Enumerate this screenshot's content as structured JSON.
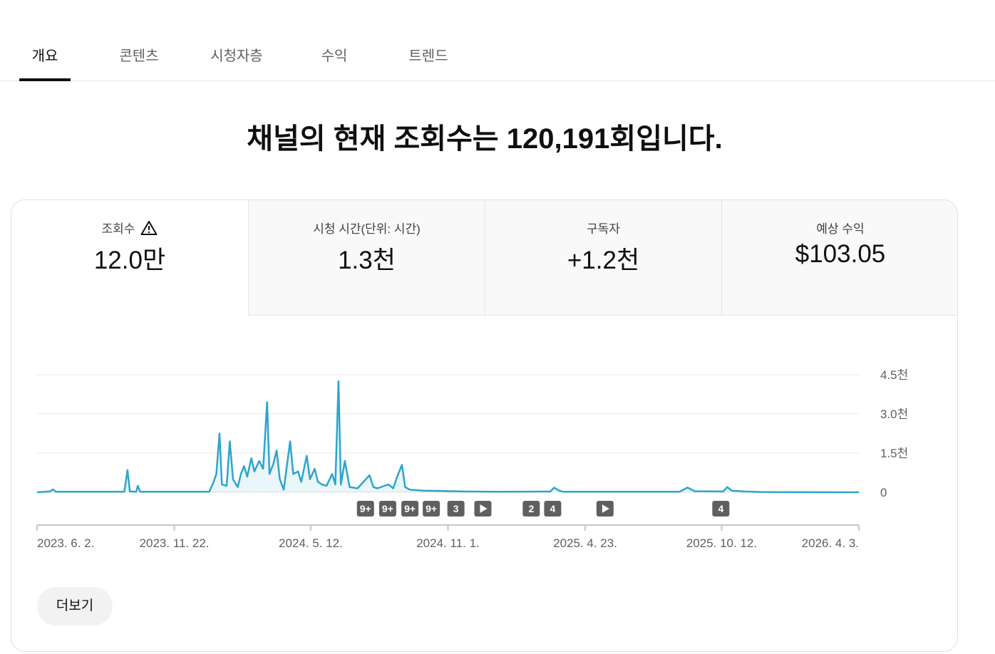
{
  "tabs": [
    "개요",
    "콘텐츠",
    "시청자층",
    "수익",
    "트렌드"
  ],
  "active_tab": 0,
  "headline": "채널의 현재 조회수는 120,191회입니다.",
  "metrics": [
    {
      "label": "조회수",
      "value": "12.0만"
    },
    {
      "label": "시청 시간(단위: 시간)",
      "value": "1.3천"
    },
    {
      "label": "구독자",
      "value": "+1.2천"
    },
    {
      "label": "예상 수익",
      "value": "$103.05"
    }
  ],
  "chart_data": {
    "type": "line",
    "color": "#2ea4cc",
    "grid": true,
    "x": [
      "2023-06-02",
      "2023-06-18",
      "2023-06-22",
      "2023-06-26",
      "2023-09-20",
      "2023-09-24",
      "2023-09-27",
      "2023-10-05",
      "2023-10-07",
      "2023-10-10",
      "2024-01-05",
      "2024-01-10",
      "2024-01-14",
      "2024-01-18",
      "2024-01-21",
      "2024-01-27",
      "2024-01-31",
      "2024-02-04",
      "2024-02-10",
      "2024-02-14",
      "2024-02-18",
      "2024-02-22",
      "2024-02-27",
      "2024-03-02",
      "2024-03-08",
      "2024-03-13",
      "2024-03-18",
      "2024-03-21",
      "2024-03-26",
      "2024-03-30",
      "2024-04-03",
      "2024-04-08",
      "2024-04-16",
      "2024-04-20",
      "2024-04-26",
      "2024-04-30",
      "2024-05-07",
      "2024-05-11",
      "2024-05-17",
      "2024-05-21",
      "2024-05-26",
      "2024-06-01",
      "2024-06-08",
      "2024-06-12",
      "2024-06-16",
      "2024-06-19",
      "2024-06-24",
      "2024-06-30",
      "2024-07-10",
      "2024-07-25",
      "2024-07-30",
      "2024-08-04",
      "2024-08-18",
      "2024-08-24",
      "2024-08-29",
      "2024-09-04",
      "2024-09-08",
      "2024-09-14",
      "2024-10-01",
      "2024-10-24",
      "2024-11-20",
      "2025-01-05",
      "2025-03-10",
      "2025-03-15",
      "2025-03-20",
      "2025-03-26",
      "2025-08-20",
      "2025-08-30",
      "2025-09-08",
      "2025-10-14",
      "2025-10-19",
      "2025-10-25",
      "2025-11-10",
      "2025-12-01",
      "2026-04-03"
    ],
    "values": [
      0,
      30,
      110,
      20,
      20,
      850,
      30,
      20,
      250,
      20,
      20,
      350,
      700,
      2250,
      300,
      250,
      1950,
      500,
      200,
      700,
      1000,
      600,
      1300,
      800,
      1200,
      900,
      3450,
      700,
      1100,
      1600,
      500,
      100,
      1950,
      700,
      800,
      400,
      1400,
      500,
      900,
      400,
      300,
      250,
      700,
      300,
      4250,
      300,
      1200,
      200,
      150,
      650,
      200,
      150,
      300,
      150,
      600,
      1050,
      200,
      100,
      60,
      50,
      30,
      20,
      30,
      180,
      80,
      20,
      20,
      180,
      40,
      30,
      200,
      60,
      30,
      10,
      0
    ],
    "xlim": [
      "2023-06-02",
      "2026-04-03"
    ],
    "xticks": [
      {
        "value": "2023-06-02",
        "label": "2023. 6. 2."
      },
      {
        "value": "2023-11-22",
        "label": "2023. 11. 22."
      },
      {
        "value": "2024-05-12",
        "label": "2024. 5. 12."
      },
      {
        "value": "2024-11-01",
        "label": "2024. 11. 1."
      },
      {
        "value": "2025-04-23",
        "label": "2025. 4. 23."
      },
      {
        "value": "2025-10-12",
        "label": "2025. 10. 12."
      },
      {
        "value": "2026-04-03",
        "label": "2026. 4. 3."
      }
    ],
    "ylim": [
      0,
      4500
    ],
    "yticks": [
      0,
      {
        "value": 1500,
        "label": "1.5천"
      },
      {
        "value": 3000,
        "label": "3.0천"
      },
      {
        "value": 4500,
        "label": "4.5천"
      }
    ],
    "markers": [
      {
        "x": "2024-07-20",
        "label": "9+"
      },
      {
        "x": "2024-08-17",
        "label": "9+"
      },
      {
        "x": "2024-09-14",
        "label": "9+"
      },
      {
        "x": "2024-10-11",
        "label": "9+"
      },
      {
        "x": "2024-11-11",
        "label": "3"
      },
      {
        "x": "2024-12-15"
      },
      {
        "x": "2025-02-14",
        "label": "2"
      },
      {
        "x": "2025-03-13",
        "label": "4"
      },
      {
        "x": "2025-05-18"
      },
      {
        "x": "2025-10-11",
        "label": "4"
      }
    ]
  },
  "button": "더보기"
}
